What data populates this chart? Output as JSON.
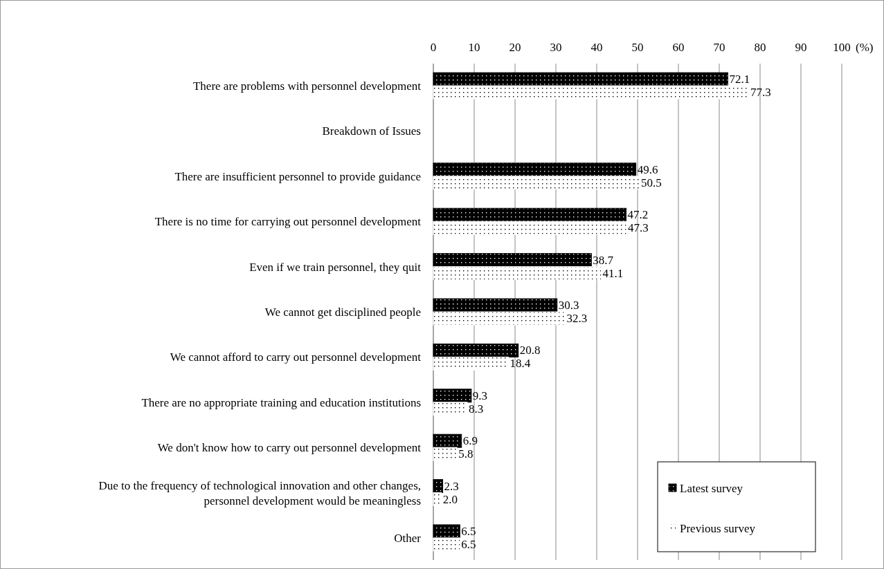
{
  "chart_data": {
    "type": "bar",
    "orientation": "horizontal",
    "xlabel": "(%)",
    "categories": [
      "There are problems with personnel development",
      "Breakdown of Issues",
      "There are insufficient personnel to provide guidance",
      "There is no time for carrying out personnel development",
      "Even if we train personnel, they quit",
      "We cannot get disciplined people",
      "We cannot afford to carry out personnel development",
      "There are no appropriate training and education institutions",
      "We don't know how to carry out personnel development",
      "Due to the frequency of technological innovation and other changes, personnel development would be meaningless",
      "Other"
    ],
    "series": [
      {
        "name": "Latest survey",
        "color": "#000000",
        "values": [
          72.1,
          null,
          49.6,
          47.2,
          38.7,
          30.3,
          20.8,
          9.3,
          6.9,
          2.3,
          6.5
        ],
        "value_labels": [
          "72.1",
          null,
          "49.6",
          "47.2",
          "38.7",
          "30.3",
          "20.8",
          "9.3",
          "6.9",
          "2.3",
          "6.5"
        ]
      },
      {
        "name": "Previous survey",
        "color": "#ffffff",
        "values": [
          77.3,
          null,
          50.5,
          47.3,
          41.1,
          32.3,
          18.4,
          8.3,
          5.8,
          2.0,
          6.5
        ],
        "value_labels": [
          "77.3",
          null,
          "50.5",
          "47.3",
          "41.1",
          "32.3",
          "18.4",
          "8.3",
          "5.8",
          "2.0",
          "6.5"
        ]
      }
    ],
    "xlim": [
      0,
      100
    ],
    "xticks": [
      0,
      10,
      20,
      30,
      40,
      50,
      60,
      70,
      80,
      90,
      100
    ],
    "grid": "x",
    "legend": "bottom right"
  }
}
